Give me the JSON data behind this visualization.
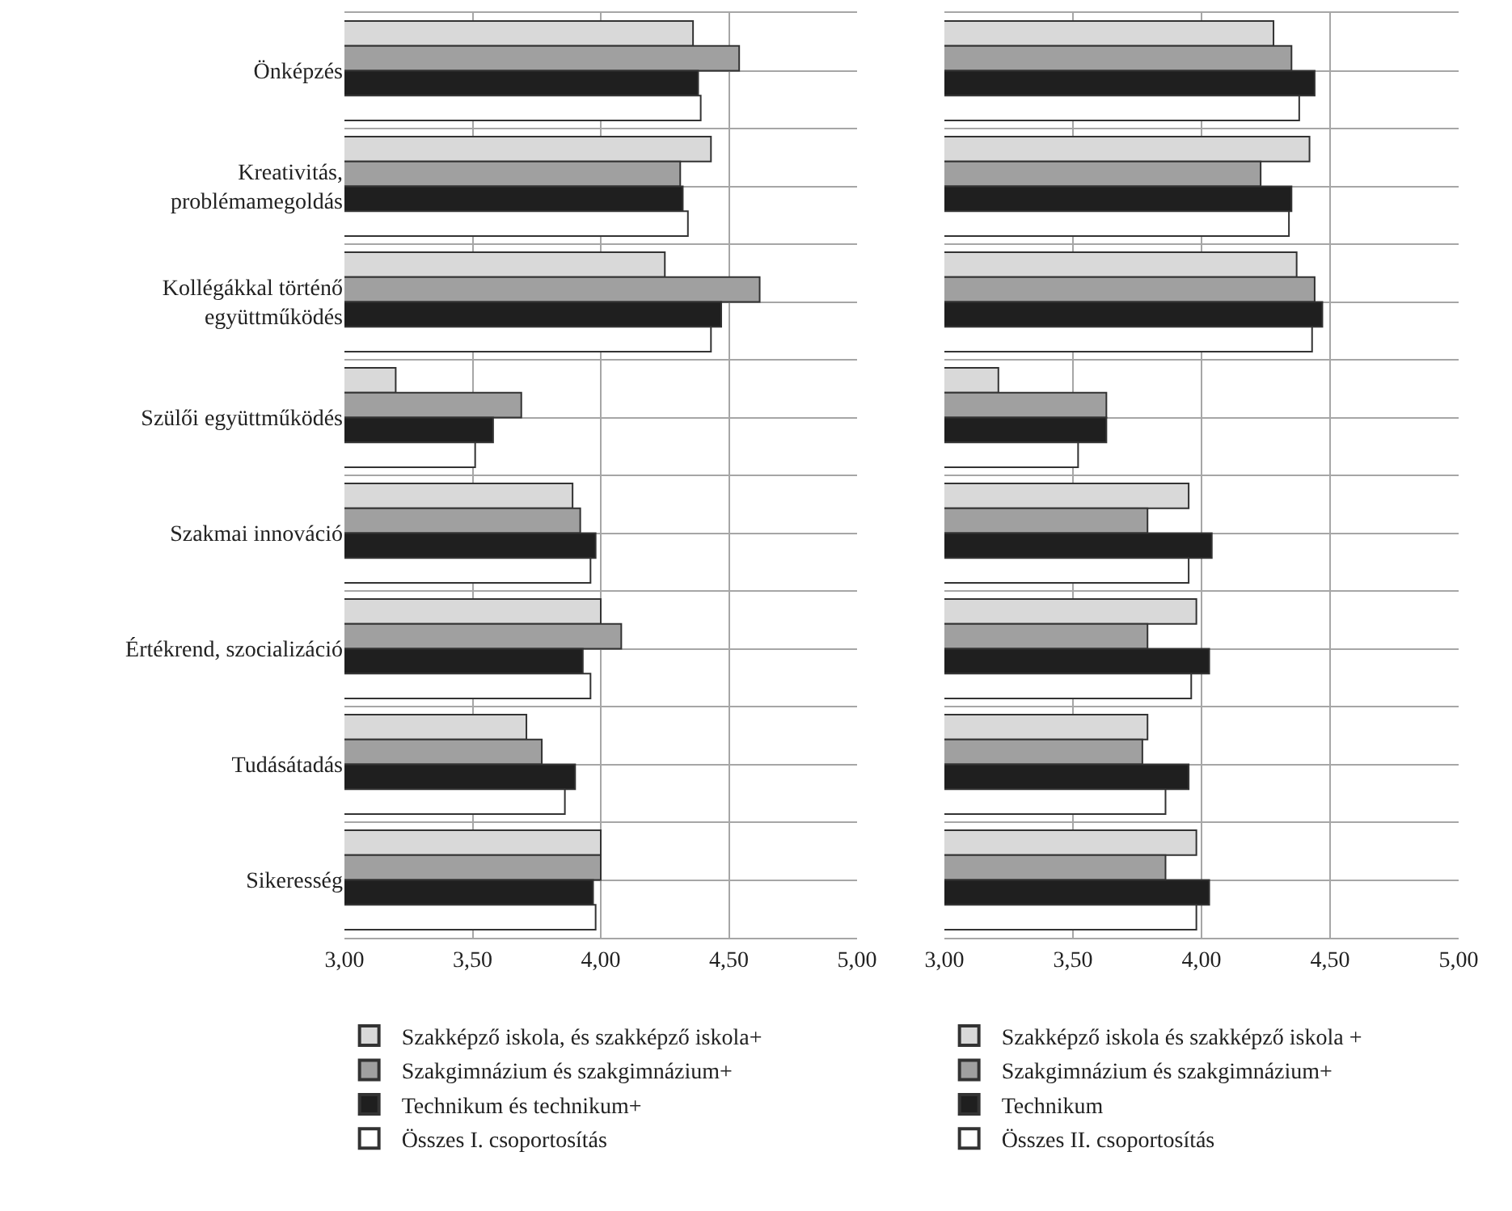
{
  "chart_data": [
    {
      "type": "bar",
      "orientation": "horizontal",
      "categories": [
        "Önképzés",
        "Kreativitás, problémamegoldás",
        "Kollégákkal történő együttműködés",
        "Szülői együttműködés",
        "Szakmai innováció",
        "Értékrend, szocializáció",
        "Tudásátadás",
        "Sikeresség"
      ],
      "series": [
        {
          "name": "Szakképző iskola, és szakképző iskola+",
          "color": "#d9d9d9",
          "values": [
            4.36,
            4.43,
            4.25,
            3.2,
            3.89,
            4.0,
            3.71,
            4.0
          ]
        },
        {
          "name": "Szakgimnázium és szakgimnázium+",
          "color": "#a0a0a0",
          "values": [
            4.54,
            4.31,
            4.62,
            3.69,
            3.92,
            4.08,
            3.77,
            4.0
          ]
        },
        {
          "name": "Technikum és technikum+",
          "color": "#1f1f1f",
          "values": [
            4.38,
            4.32,
            4.47,
            3.58,
            3.98,
            3.93,
            3.9,
            3.97
          ]
        },
        {
          "name": "Összes I. csoportosítás",
          "color": "#ffffff",
          "values": [
            4.39,
            4.34,
            4.43,
            3.51,
            3.96,
            3.96,
            3.86,
            3.98
          ]
        }
      ],
      "xlim": [
        3,
        5
      ],
      "xticks": [
        {
          "value": 3,
          "label": "3,00"
        },
        {
          "value": 3.5,
          "label": "3,50"
        },
        {
          "value": 4,
          "label": "4,00"
        },
        {
          "value": 4.5,
          "label": "4,50"
        },
        {
          "value": 5,
          "label": "5,00"
        }
      ],
      "grid": true,
      "legend": "bottom"
    },
    {
      "type": "bar",
      "orientation": "horizontal",
      "categories": [
        null,
        null,
        null,
        null,
        null,
        null,
        null,
        null
      ],
      "series": [
        {
          "name": "Szakképző iskola és szakképző iskola +",
          "color": "#d9d9d9",
          "values": [
            4.28,
            4.42,
            4.37,
            3.21,
            3.95,
            3.98,
            3.79,
            3.98
          ]
        },
        {
          "name": "Szakgimnázium és szakgimnázium+",
          "color": "#a0a0a0",
          "values": [
            4.35,
            4.23,
            4.44,
            3.63,
            3.79,
            3.79,
            3.77,
            3.86
          ]
        },
        {
          "name": "Technikum",
          "color": "#1f1f1f",
          "values": [
            4.44,
            4.35,
            4.47,
            3.63,
            4.04,
            4.03,
            3.95,
            4.03
          ]
        },
        {
          "name": "Összes II. csoportosítás",
          "color": "#ffffff",
          "values": [
            4.38,
            4.34,
            4.43,
            3.52,
            3.95,
            3.96,
            3.86,
            3.98
          ]
        }
      ],
      "xlim": [
        3,
        5
      ],
      "xticks": [
        {
          "value": 3,
          "label": "3,00"
        },
        {
          "value": 3.5,
          "label": "3,50"
        },
        {
          "value": 4,
          "label": "4,00"
        },
        {
          "value": 4.5,
          "label": "4,50"
        },
        {
          "value": 5,
          "label": "5,00"
        }
      ],
      "grid": true,
      "legend": "bottom",
      "tick_labels": "x"
    }
  ]
}
